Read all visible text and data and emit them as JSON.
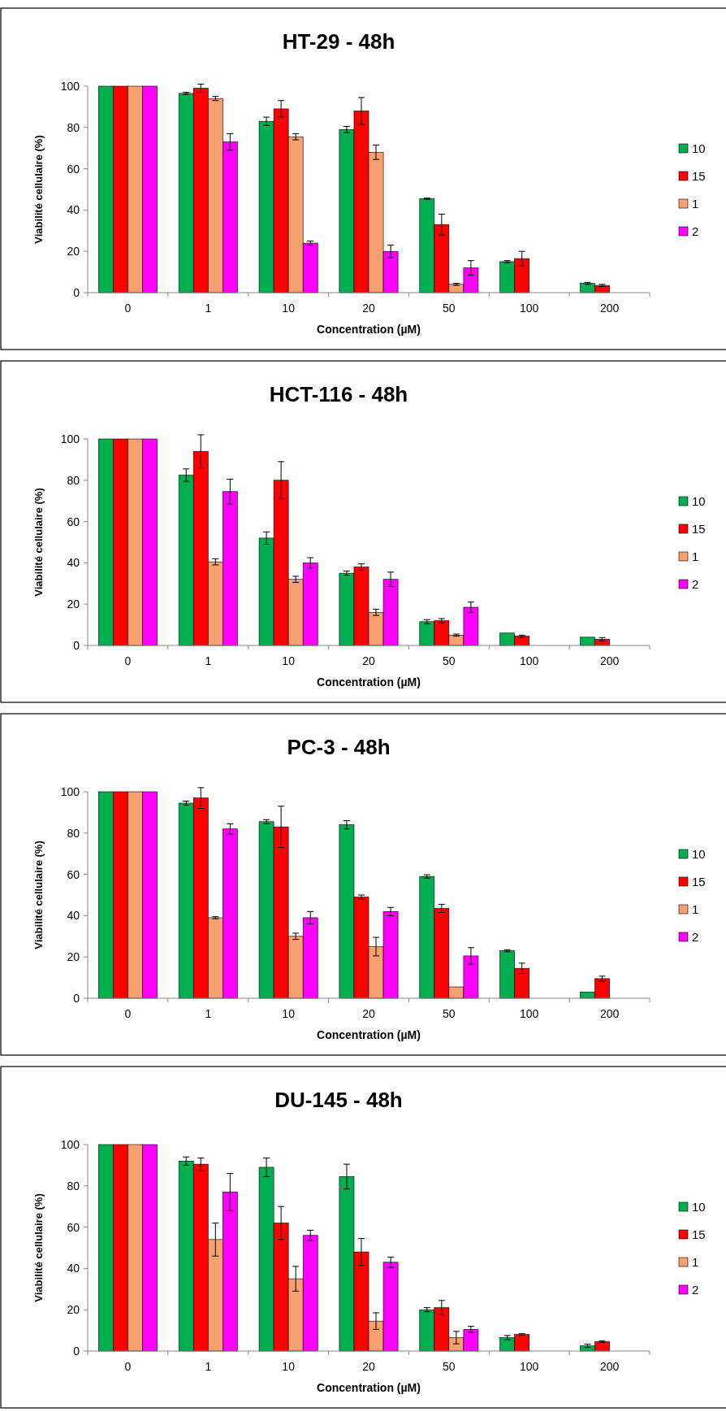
{
  "chart_data": [
    {
      "type": "bar",
      "title": "HT-29 - 48h",
      "xlabel": "Concentration (µM)",
      "ylabel": "Viabilité cellulaire (%)",
      "categories": [
        "0",
        "1",
        "10",
        "20",
        "50",
        "100",
        "200"
      ],
      "ylim": [
        0,
        100
      ],
      "yticks": [
        0,
        20,
        40,
        60,
        80,
        100
      ],
      "grid": false,
      "legend": "right",
      "series": [
        {
          "name": "10",
          "color": "#00b050",
          "values": [
            100,
            96.5,
            83,
            79,
            45.5,
            15,
            4.5
          ],
          "errors": [
            null,
            0.5,
            2,
            1.5,
            0.3,
            0.5,
            0.5
          ]
        },
        {
          "name": "15",
          "color": "#ff0000",
          "values": [
            100,
            99,
            89,
            88,
            33,
            16.5,
            3.5
          ],
          "errors": [
            null,
            2,
            4,
            6.5,
            5,
            3.5,
            0.5
          ]
        },
        {
          "name": "1",
          "color": "#f9a070",
          "values": [
            100,
            94,
            75.5,
            68,
            4,
            null,
            null
          ],
          "errors": [
            null,
            1,
            1.5,
            3.5,
            0.5,
            null,
            null
          ]
        },
        {
          "name": "2",
          "color": "#ff00ff",
          "values": [
            100,
            73,
            24,
            20,
            12,
            null,
            null
          ],
          "errors": [
            null,
            4,
            1,
            3,
            3.5,
            null,
            null
          ]
        }
      ]
    },
    {
      "type": "bar",
      "title": "HCT-116 - 48h",
      "xlabel": "Concentration (µM)",
      "ylabel": "Viabilité cellulaire (%)",
      "categories": [
        "0",
        "1",
        "10",
        "20",
        "50",
        "100",
        "200"
      ],
      "ylim": [
        0,
        100
      ],
      "yticks": [
        0,
        20,
        40,
        60,
        80,
        100
      ],
      "grid": false,
      "legend": "right",
      "series": [
        {
          "name": "10",
          "color": "#00b050",
          "values": [
            100,
            82.5,
            52,
            35,
            11.5,
            6,
            4
          ],
          "errors": [
            null,
            3,
            3,
            1,
            1,
            null,
            null
          ]
        },
        {
          "name": "15",
          "color": "#ff0000",
          "values": [
            100,
            94,
            80,
            38,
            12,
            4.5,
            3
          ],
          "errors": [
            null,
            8,
            9,
            1.5,
            1,
            0.5,
            0.8
          ]
        },
        {
          "name": "1",
          "color": "#f9a070",
          "values": [
            100,
            40.5,
            32,
            16,
            5,
            null,
            null
          ],
          "errors": [
            null,
            1.5,
            1.5,
            1.5,
            0.5,
            null,
            null
          ]
        },
        {
          "name": "2",
          "color": "#ff00ff",
          "values": [
            100,
            74.5,
            40,
            32,
            18.5,
            null,
            null
          ],
          "errors": [
            null,
            6,
            2.5,
            3.5,
            2.5,
            null,
            null
          ]
        }
      ]
    },
    {
      "type": "bar",
      "title": "PC-3 - 48h",
      "xlabel": "Concentration (µM)",
      "ylabel": "Viabilité cellulaire (%)",
      "categories": [
        "0",
        "1",
        "10",
        "20",
        "50",
        "100",
        "200"
      ],
      "ylim": [
        0,
        100
      ],
      "yticks": [
        0,
        20,
        40,
        60,
        80,
        100
      ],
      "grid": false,
      "legend": "right",
      "series": [
        {
          "name": "10",
          "color": "#00b050",
          "values": [
            100,
            94.5,
            85.5,
            84,
            59,
            23,
            3
          ],
          "errors": [
            null,
            1,
            1,
            2,
            0.8,
            0.5,
            null
          ]
        },
        {
          "name": "15",
          "color": "#ff0000",
          "values": [
            100,
            97,
            83,
            49,
            43.5,
            14.5,
            9.5
          ],
          "errors": [
            null,
            5,
            10,
            1,
            2,
            2.5,
            1.2
          ]
        },
        {
          "name": "1",
          "color": "#f9a070",
          "values": [
            100,
            39,
            30,
            25,
            5.5,
            null,
            null
          ],
          "errors": [
            null,
            0.5,
            1.5,
            4.5,
            null,
            null,
            null
          ]
        },
        {
          "name": "2",
          "color": "#ff00ff",
          "values": [
            100,
            82,
            39,
            42,
            20.5,
            null,
            null
          ],
          "errors": [
            null,
            2.5,
            3,
            2,
            4,
            null,
            null
          ]
        }
      ]
    },
    {
      "type": "bar",
      "title": "DU-145 - 48h",
      "xlabel": "Concentration (µM)",
      "ylabel": "Viabilité cellulaire (%)",
      "categories": [
        "0",
        "1",
        "10",
        "20",
        "50",
        "100",
        "200"
      ],
      "ylim": [
        0,
        100
      ],
      "yticks": [
        0,
        20,
        40,
        60,
        80,
        100
      ],
      "grid": false,
      "legend": "right",
      "series": [
        {
          "name": "10",
          "color": "#00b050",
          "values": [
            100,
            92,
            89,
            84.5,
            20,
            6.5,
            2.5
          ],
          "errors": [
            null,
            2,
            4.5,
            6,
            1,
            1,
            0.8
          ]
        },
        {
          "name": "15",
          "color": "#ff0000",
          "values": [
            100,
            90.5,
            62,
            48,
            21,
            8,
            4.5
          ],
          "errors": [
            null,
            3,
            8,
            6.5,
            3.5,
            0.4,
            0.4
          ]
        },
        {
          "name": "1",
          "color": "#f9a070",
          "values": [
            100,
            54,
            35,
            14.5,
            6.5,
            null,
            null
          ],
          "errors": [
            null,
            8,
            6,
            4,
            3,
            null,
            null
          ]
        },
        {
          "name": "2",
          "color": "#ff00ff",
          "values": [
            100,
            77,
            56,
            43,
            10.5,
            null,
            null
          ],
          "errors": [
            null,
            9,
            2.5,
            2.5,
            1.5,
            null,
            null
          ]
        }
      ]
    }
  ]
}
